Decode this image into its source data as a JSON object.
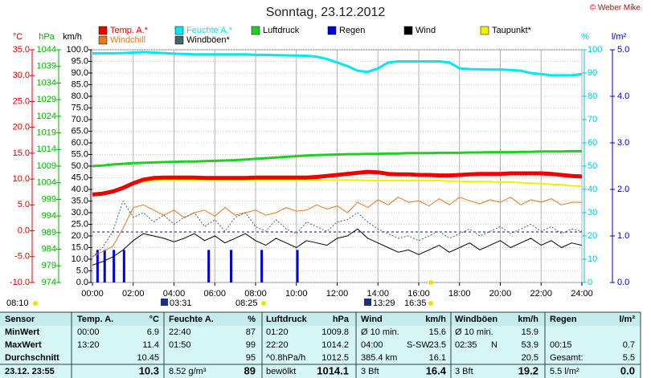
{
  "chart_data": {
    "type": "line",
    "title": "Sonntag, 23.12.2012",
    "copyright": "© Weber Mike",
    "xlim": [
      0,
      24
    ],
    "xticks": [
      {
        "value": 0,
        "label": "00:00"
      },
      {
        "value": 2,
        "label": "02:00"
      },
      {
        "value": 4,
        "label": "04:00"
      },
      {
        "value": 6,
        "label": "06:00"
      },
      {
        "value": 8,
        "label": "08:00"
      },
      {
        "value": 10,
        "label": "10:00"
      },
      {
        "value": 12,
        "label": "12:00"
      },
      {
        "value": 14,
        "label": "14:00"
      },
      {
        "value": 16,
        "label": "16:00"
      },
      {
        "value": 18,
        "label": "18:00"
      },
      {
        "value": 20,
        "label": "20:00"
      },
      {
        "value": 22,
        "label": "22:00"
      },
      {
        "value": 24,
        "label": "24:00"
      }
    ],
    "grid": true,
    "axes": [
      {
        "name": "°C",
        "color": "#e00000",
        "ylim": [
          -10,
          35
        ],
        "yticks": [
          {
            "value": 35,
            "label": "35.0"
          },
          {
            "value": 30,
            "label": "30.0"
          },
          {
            "value": 25,
            "label": "25.0"
          },
          {
            "value": 20,
            "label": "20.0"
          },
          {
            "value": 15,
            "label": "15.0"
          },
          {
            "value": 10,
            "label": "10.0"
          },
          {
            "value": 5,
            "label": "5.0"
          },
          {
            "value": 0,
            "label": "0.0"
          },
          {
            "value": -5,
            "label": "-5.0"
          },
          {
            "value": -10,
            "label": "-10.0"
          }
        ]
      },
      {
        "name": "hPa",
        "color": "#00b000",
        "ylim": [
          974,
          1044
        ],
        "yticks": [
          1044,
          1039,
          1034,
          1029,
          1024,
          1019,
          1014,
          1009,
          1004,
          999,
          994,
          989,
          984,
          979,
          974
        ]
      },
      {
        "name": "km/h",
        "color": "#000000",
        "ylim": [
          0,
          100
        ],
        "yticks": [
          {
            "value": 100,
            "label": "100.0"
          },
          {
            "value": 95,
            "label": "95.0"
          },
          {
            "value": 90,
            "label": "90.0"
          },
          {
            "value": 85,
            "label": "85.0"
          },
          {
            "value": 80,
            "label": "80.0"
          },
          {
            "value": 75,
            "label": "75.0"
          },
          {
            "value": 70,
            "label": "70.0"
          },
          {
            "value": 65,
            "label": "65.0"
          },
          {
            "value": 60,
            "label": "60.0"
          },
          {
            "value": 55,
            "label": "55.0"
          },
          {
            "value": 50,
            "label": "50.0"
          },
          {
            "value": 45,
            "label": "45.0"
          },
          {
            "value": 40,
            "label": "40.0"
          },
          {
            "value": 35,
            "label": "35.0"
          },
          {
            "value": 30,
            "label": "30.0"
          },
          {
            "value": 25,
            "label": "25.0"
          },
          {
            "value": 20,
            "label": "20.0"
          },
          {
            "value": 15,
            "label": "15.0"
          },
          {
            "value": 10,
            "label": "10.0"
          },
          {
            "value": 5,
            "label": "5.0"
          },
          {
            "value": 0,
            "label": "0.0"
          }
        ]
      },
      {
        "name": "%",
        "color": "#00c8d8",
        "ylim": [
          0,
          100
        ],
        "yticks": [
          100,
          90,
          80,
          70,
          60,
          50,
          40,
          30,
          20,
          10,
          0
        ]
      },
      {
        "name": "l/m²",
        "color": "#0000d0",
        "ylim": [
          0,
          5
        ],
        "yticks": [
          {
            "value": 5,
            "label": "5.0"
          },
          {
            "value": 4,
            "label": "4.0"
          },
          {
            "value": 3,
            "label": "3.0"
          },
          {
            "value": 2,
            "label": "2.0"
          },
          {
            "value": 1,
            "label": "1.0"
          },
          {
            "value": 0,
            "label": "0.0"
          }
        ]
      }
    ],
    "x": [
      0,
      0.5,
      1,
      1.5,
      2,
      2.5,
      3,
      3.5,
      4,
      4.5,
      5,
      5.5,
      6,
      6.5,
      7,
      7.5,
      8,
      8.5,
      9,
      9.5,
      10,
      10.5,
      11,
      11.5,
      12,
      12.5,
      13,
      13.5,
      14,
      14.5,
      15,
      15.5,
      16,
      16.5,
      17,
      17.5,
      18,
      18.5,
      19,
      19.5,
      20,
      20.5,
      21,
      21.5,
      22,
      22.5,
      23,
      23.5,
      24
    ],
    "series": [
      {
        "name": "Temp. A.*",
        "color": "#ee0000",
        "axis": 0,
        "width": 5,
        "values": [
          7.0,
          7.2,
          7.6,
          8.3,
          9.2,
          9.9,
          10.2,
          10.3,
          10.3,
          10.3,
          10.3,
          10.2,
          10.2,
          10.2,
          10.2,
          10.2,
          10.3,
          10.3,
          10.3,
          10.3,
          10.3,
          10.3,
          10.4,
          10.6,
          10.8,
          11.0,
          11.2,
          11.4,
          11.3,
          11.0,
          10.9,
          10.9,
          10.8,
          10.8,
          10.7,
          10.7,
          10.8,
          10.9,
          11.0,
          11.0,
          11.0,
          11.1,
          11.1,
          11.1,
          11.1,
          11.0,
          10.8,
          10.6,
          10.5
        ]
      },
      {
        "name": "Feuchte A.*",
        "color": "#00e8f0",
        "axis": 3,
        "width": 3,
        "values": [
          98.5,
          98.5,
          98.5,
          98.6,
          98.8,
          99.0,
          98.8,
          98.6,
          98.3,
          98.2,
          98.0,
          98.0,
          98.0,
          98.0,
          98.0,
          98.0,
          97.8,
          97.8,
          97.7,
          97.6,
          97.5,
          97.4,
          97.0,
          96.0,
          94.5,
          93.0,
          91.0,
          90.5,
          92.0,
          94.5,
          95.0,
          95.0,
          95.0,
          95.0,
          95.0,
          94.5,
          92.0,
          91.7,
          91.6,
          91.5,
          91.5,
          91.3,
          91.0,
          90.0,
          89.5,
          89.0,
          89.0,
          89.0,
          89.5
        ]
      },
      {
        "name": "Luftdruck",
        "color": "#20d020",
        "axis": 1,
        "width": 3,
        "values": [
          1009.0,
          1009.2,
          1009.5,
          1009.7,
          1009.9,
          1010.0,
          1010.1,
          1010.2,
          1010.3,
          1010.4,
          1010.4,
          1010.5,
          1010.6,
          1010.7,
          1010.8,
          1011.0,
          1011.2,
          1011.4,
          1011.6,
          1011.8,
          1012.0,
          1012.2,
          1012.3,
          1012.4,
          1012.5,
          1012.6,
          1012.6,
          1012.7,
          1012.7,
          1012.8,
          1012.8,
          1012.9,
          1012.9,
          1012.9,
          1013.0,
          1013.0,
          1013.0,
          1013.1,
          1013.1,
          1013.2,
          1013.2,
          1013.2,
          1013.3,
          1013.3,
          1013.4,
          1013.4,
          1013.4,
          1013.5,
          1013.5
        ]
      },
      {
        "name": "Regen",
        "color": "#0000e0",
        "axis": 4,
        "kind": "bar",
        "x": [
          0.25,
          0.6,
          1.05,
          1.55,
          5.7,
          6.8,
          8.3,
          10.05
        ],
        "values": [
          0.7,
          0.7,
          0.7,
          0.7,
          0.7,
          0.7,
          0.7,
          0.7
        ]
      },
      {
        "name": "Wind",
        "color": "#000000",
        "axis": 2,
        "width": 1,
        "values": [
          7.5,
          9.0,
          11.0,
          14.0,
          18.0,
          21.0,
          20.0,
          19.0,
          17.5,
          19.0,
          21.0,
          18.0,
          20.0,
          17.0,
          19.0,
          21.0,
          18.0,
          16.0,
          19.0,
          17.0,
          15.0,
          18.0,
          17.0,
          16.0,
          19.0,
          20.0,
          23.0,
          19.0,
          17.0,
          15.0,
          13.0,
          14.0,
          12.0,
          14.0,
          16.0,
          13.0,
          15.0,
          17.0,
          14.0,
          16.0,
          18.0,
          15.0,
          17.0,
          19.0,
          16.0,
          18.0,
          15.0,
          17.0,
          16.0
        ]
      },
      {
        "name": "Taupunkt*",
        "color": "#f0f000",
        "axis": 0,
        "width": 2,
        "values": [
          7.0,
          7.2,
          7.6,
          8.3,
          9.0,
          9.5,
          9.7,
          9.8,
          9.8,
          9.8,
          9.8,
          9.8,
          9.8,
          9.8,
          9.8,
          9.8,
          9.8,
          9.8,
          9.8,
          9.8,
          9.8,
          9.8,
          9.8,
          9.8,
          9.8,
          9.8,
          9.8,
          9.7,
          9.7,
          9.7,
          9.7,
          9.7,
          9.7,
          9.7,
          9.7,
          9.6,
          9.6,
          9.5,
          9.5,
          9.5,
          9.4,
          9.4,
          9.3,
          9.2,
          9.1,
          9.0,
          8.9,
          8.7,
          8.6
        ]
      },
      {
        "name": "Windchill",
        "color": "#e87818",
        "axis": 0,
        "width": 1,
        "values": [
          -5.0,
          -4.0,
          -3.0,
          0.5,
          4.5,
          5.0,
          4.0,
          3.0,
          4.0,
          2.5,
          3.5,
          4.0,
          2.8,
          4.5,
          3.0,
          3.5,
          4.0,
          3.0,
          3.5,
          4.5,
          3.8,
          4.0,
          5.0,
          4.2,
          4.8,
          3.5,
          5.5,
          4.5,
          6.0,
          5.0,
          6.5,
          5.5,
          5.8,
          4.8,
          6.2,
          5.0,
          6.5,
          5.8,
          5.2,
          6.0,
          5.5,
          6.5,
          5.0,
          6.0,
          5.5,
          6.2,
          5.0,
          5.5,
          5.5
        ]
      },
      {
        "name": "Windböen*",
        "color": "#406868",
        "axis": 2,
        "width": 1,
        "dash": "2,2",
        "values": [
          11.0,
          15.0,
          22.0,
          35.0,
          28.0,
          30.0,
          26.0,
          29.0,
          25.0,
          28.0,
          30.0,
          24.0,
          27.0,
          22.0,
          28.0,
          30.0,
          24.0,
          22.0,
          27.0,
          23.0,
          21.0,
          26.0,
          24.0,
          22.0,
          26.0,
          27.0,
          30.0,
          26.0,
          23.0,
          21.0,
          19.0,
          20.0,
          18.0,
          20.0,
          22.0,
          19.0,
          21.0,
          23.0,
          20.0,
          22.0,
          24.0,
          21.0,
          23.0,
          25.0,
          22.0,
          24.0,
          21.0,
          23.0,
          22.0
        ]
      }
    ],
    "astro": [
      "08:10",
      "03:31",
      "08:25",
      "13:29",
      "16:35"
    ]
  },
  "table": {
    "header": [
      "Sensor",
      "Temp. A.",
      "°C",
      "Feuchte A.",
      "%",
      "Luftdruck",
      "hPa",
      "Wind",
      null,
      "km/h",
      "Windböen",
      null,
      "km/h",
      "Regen",
      "l/m²"
    ],
    "rows": [
      [
        "MinWert",
        "00:00",
        "6.9",
        "22:40",
        "87",
        "01:20",
        "1009.8",
        "Ø 10 min.",
        null,
        "15.6",
        "Ø 10 min.",
        null,
        "15.9",
        null,
        null
      ],
      [
        "MaxWert",
        "13:20",
        "11.4",
        "01:50",
        "99",
        "22:20",
        "1014.2",
        "04:00",
        "S-SW",
        "23.5",
        "02:35",
        "N",
        "53.9",
        "00:15",
        "0.7"
      ],
      [
        "Durchschnitt",
        null,
        "10.45",
        null,
        "95",
        "^0.8hPa/h",
        "1012.5",
        "385.4 km",
        null,
        "16.1",
        null,
        null,
        "20.5",
        "Gesamt:",
        "5.5"
      ],
      [
        "23.12. 23:55",
        null,
        "10.3",
        "8.52 g/m³",
        "89",
        "bewölkt",
        "1014.1",
        "3 Bft",
        null,
        "16.4",
        "3 Bft",
        null,
        "19.2",
        "5.5 l/m²",
        "0.0"
      ]
    ]
  }
}
